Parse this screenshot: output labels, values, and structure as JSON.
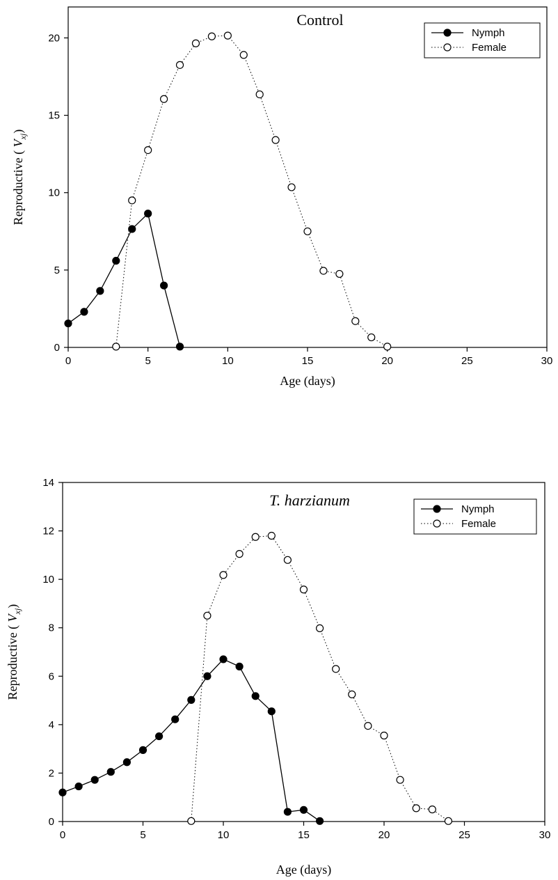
{
  "chart_data": [
    {
      "type": "line",
      "title": "Control",
      "title_italic": false,
      "xlabel": "Age (days)",
      "ylabel_prefix": "Reproductive ( ",
      "ylabel_var": "V",
      "ylabel_sub": "xj",
      "ylabel_suffix": ")",
      "xlim": [
        0,
        30
      ],
      "ylim": [
        0,
        22
      ],
      "xticks": [
        0,
        5,
        10,
        15,
        20,
        25,
        30
      ],
      "yticks": [
        0,
        5,
        10,
        15,
        20
      ],
      "legend_position": "top-right",
      "grid": false,
      "series": [
        {
          "name": "Nymph",
          "marker": "filled-circle",
          "line_style": "solid",
          "x": [
            0,
            1,
            2,
            3,
            4,
            5,
            6,
            7
          ],
          "y": [
            1.55,
            2.3,
            3.65,
            5.6,
            7.65,
            8.65,
            4.0,
            0.05
          ]
        },
        {
          "name": "Female",
          "marker": "open-circle",
          "line_style": "dotted",
          "x": [
            3,
            4,
            5,
            6,
            7,
            8,
            9,
            10,
            11,
            12,
            13,
            14,
            15,
            16,
            17,
            18,
            19,
            20
          ],
          "y": [
            0.05,
            9.5,
            12.75,
            16.05,
            18.25,
            19.65,
            20.1,
            20.15,
            18.9,
            16.35,
            13.4,
            10.35,
            7.5,
            4.95,
            4.75,
            1.7,
            0.65,
            0.05
          ]
        }
      ]
    },
    {
      "type": "line",
      "title": "T. harzianum",
      "title_italic": true,
      "xlabel": "Age (days)",
      "ylabel_prefix": "Reproductive ( ",
      "ylabel_var": "V",
      "ylabel_sub": "xj",
      "ylabel_suffix": ")",
      "xlim": [
        0,
        30
      ],
      "ylim": [
        0,
        14
      ],
      "xticks": [
        0,
        5,
        10,
        15,
        20,
        25,
        30
      ],
      "yticks": [
        0,
        2,
        4,
        6,
        8,
        10,
        12,
        14
      ],
      "legend_position": "top-right",
      "grid": false,
      "series": [
        {
          "name": "Nymph",
          "marker": "filled-circle",
          "line_style": "solid",
          "x": [
            0,
            1,
            2,
            3,
            4,
            5,
            6,
            7,
            8,
            9,
            10,
            11,
            12,
            13,
            14,
            15,
            16
          ],
          "y": [
            1.2,
            1.45,
            1.72,
            2.05,
            2.45,
            2.95,
            3.52,
            4.22,
            5.02,
            6.0,
            6.7,
            6.4,
            5.18,
            4.55,
            0.4,
            0.48,
            0.02
          ]
        },
        {
          "name": "Female",
          "marker": "open-circle",
          "line_style": "dotted",
          "x": [
            8,
            9,
            10,
            11,
            12,
            13,
            14,
            15,
            16,
            17,
            18,
            19,
            20,
            21,
            22,
            23,
            24
          ],
          "y": [
            0.02,
            8.5,
            10.18,
            11.05,
            11.75,
            11.8,
            10.8,
            9.58,
            7.98,
            6.3,
            5.25,
            3.95,
            3.55,
            1.72,
            0.55,
            0.5,
            0.02
          ]
        }
      ]
    }
  ]
}
